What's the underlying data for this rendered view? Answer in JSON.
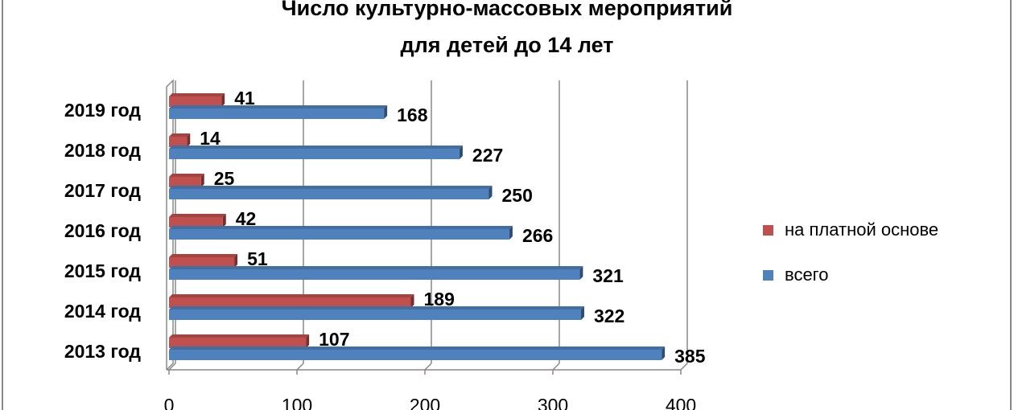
{
  "chart_data": {
    "type": "bar",
    "orientation": "horizontal",
    "title": [
      "Число культурно-массовых мероприятий",
      "для детей до 14 лет"
    ],
    "categories": [
      "2019 год",
      "2018 год",
      "2017 год",
      "2016 год",
      "2015 год",
      "2014 год",
      "2013 год"
    ],
    "series": [
      {
        "name": "на платной основе",
        "color": "#c0504d",
        "values": [
          41,
          14,
          25,
          42,
          51,
          189,
          107
        ]
      },
      {
        "name": "всего",
        "color": "#4f81bd",
        "values": [
          168,
          227,
          250,
          266,
          321,
          322,
          385
        ]
      }
    ],
    "xlim": [
      0,
      400
    ],
    "xticks": [
      0,
      100,
      200,
      300,
      400
    ],
    "grid": true,
    "legend": "right"
  }
}
